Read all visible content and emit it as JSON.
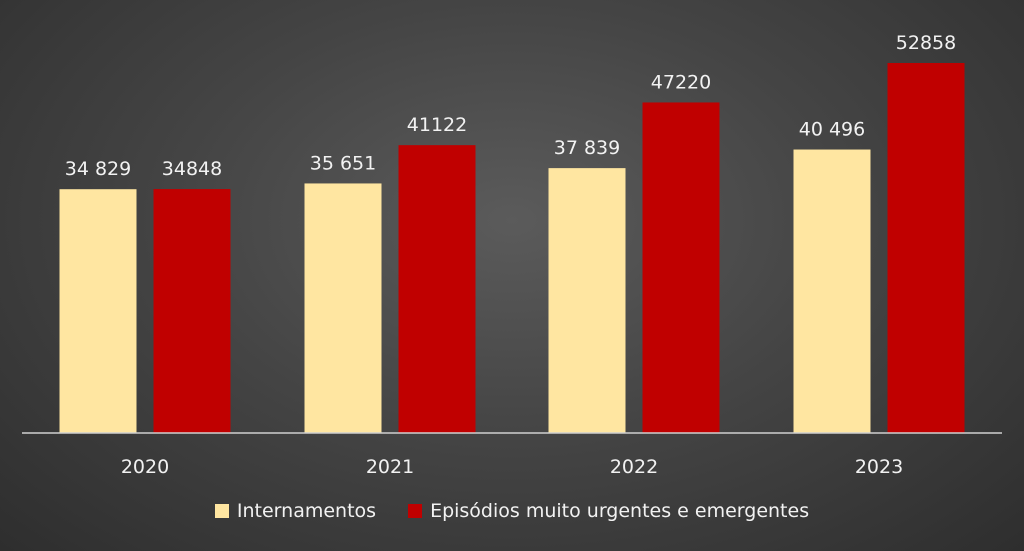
{
  "chart_data": {
    "type": "bar",
    "categories": [
      "2020",
      "2021",
      "2022",
      "2023"
    ],
    "series": [
      {
        "name": "Internamentos",
        "values": [
          34829,
          35651,
          37839,
          40496
        ],
        "labels": [
          "34 829",
          "35 651",
          "37 839",
          "40 496"
        ],
        "color": "#ffe6a1"
      },
      {
        "name": "Episódios muito urgentes e emergentes",
        "values": [
          34848,
          41122,
          47220,
          52858
        ],
        "labels": [
          "34848",
          "41122",
          "47220",
          "52858"
        ],
        "color": "#c00000"
      }
    ],
    "ylim": [
      0,
      60000
    ],
    "grid": false,
    "legend_position": "bottom"
  }
}
